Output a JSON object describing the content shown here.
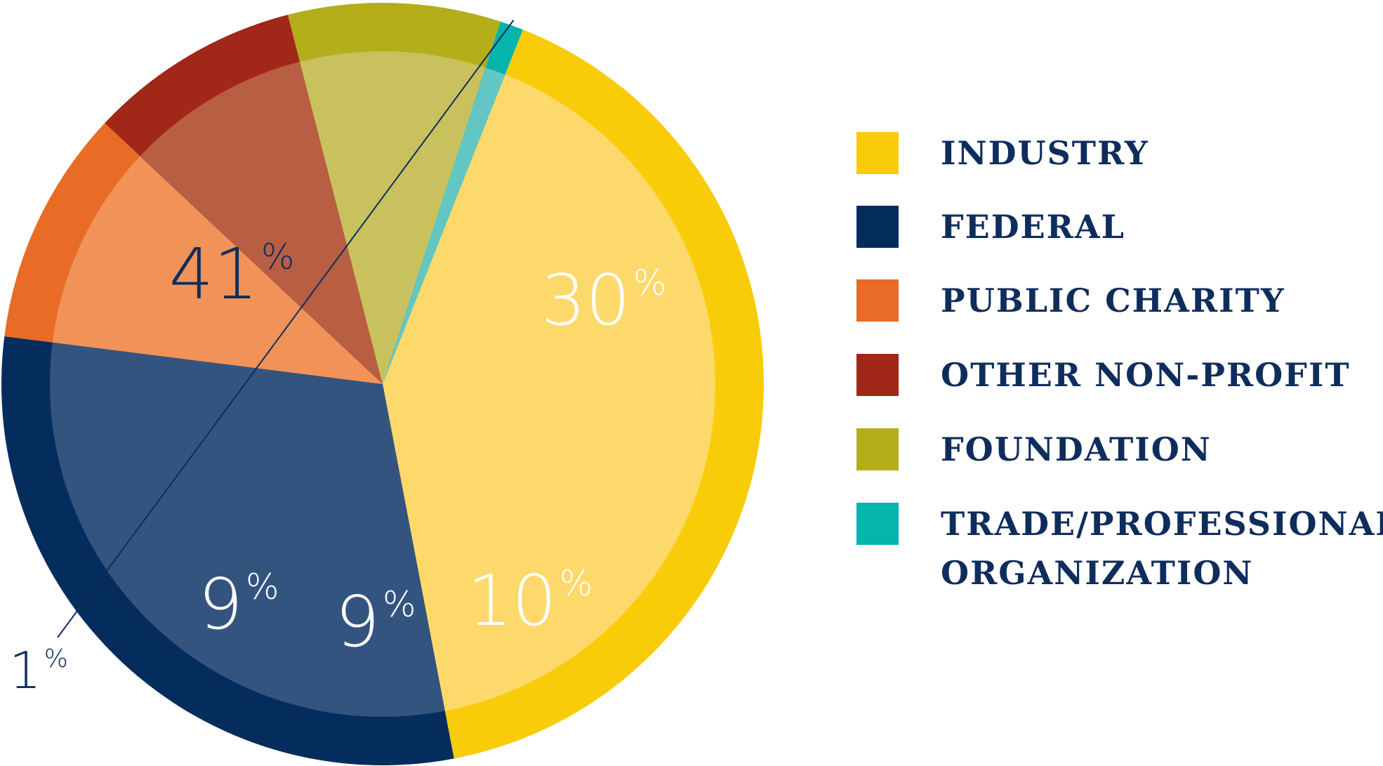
{
  "chart_data": {
    "type": "pie",
    "slices": [
      {
        "label": "INDUSTRY",
        "value": 41,
        "display": "41",
        "color": "#f9cc0a",
        "inner_color": "#fcd96a",
        "text_color": "#0f2d5c"
      },
      {
        "label": "FEDERAL",
        "value": 30,
        "display": "30",
        "color": "#042d5e",
        "inner_color": "#33547f",
        "text_color": "#ffffff"
      },
      {
        "label": "PUBLIC CHARITY",
        "value": 10,
        "display": "10",
        "color": "#e86b26",
        "inner_color": "#f19358",
        "text_color": "#ffffff"
      },
      {
        "label": "OTHER NON-PROFIT",
        "value": 9,
        "display": "9",
        "color": "#a12719",
        "inner_color": "#b85e43",
        "text_color": "#ffffff"
      },
      {
        "label": "FOUNDATION",
        "value": 9,
        "display": "9",
        "color": "#b3ae19",
        "inner_color": "#c9c15e",
        "text_color": "#ffffff"
      },
      {
        "label": "TRADE/PROFESSIONAL ORGANIZATION",
        "value": 1,
        "display": "1",
        "color": "#05b4ad",
        "inner_color": "#62c7c4",
        "text_color": "#0f2d5c"
      }
    ],
    "percent_symbol": "%",
    "legend": {
      "placement": "right",
      "entries": [
        {
          "lines": [
            "INDUSTRY"
          ],
          "color": "#f9cc0a"
        },
        {
          "lines": [
            "FEDERAL"
          ],
          "color": "#042d5e"
        },
        {
          "lines": [
            "PUBLIC CHARITY"
          ],
          "color": "#e86b26"
        },
        {
          "lines": [
            "OTHER NON-PROFIT"
          ],
          "color": "#a12719"
        },
        {
          "lines": [
            "FOUNDATION"
          ],
          "color": "#b3ae19"
        },
        {
          "lines": [
            "TRADE/PROFESSIONAL",
            "ORGANIZATION"
          ],
          "color": "#05b4ad"
        }
      ]
    },
    "title": "",
    "xlabel": "",
    "ylabel": ""
  }
}
